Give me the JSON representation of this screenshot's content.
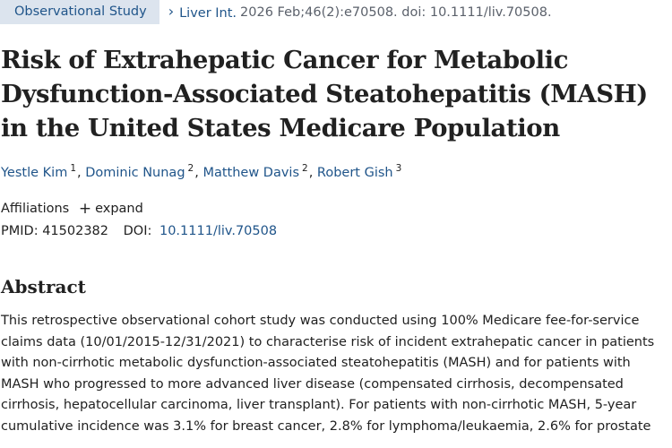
{
  "badge": "Observational Study",
  "journal": {
    "name": "Liver Int.",
    "citation": "2026 Feb;46(2):e70508. doi: 10.1111/liv.70508."
  },
  "title": "Risk of Extrahepatic Cancer for Metabolic Dysfunction-Associated Steatohepatitis (MASH) in the United States Medicare Population",
  "authors": [
    {
      "name": "Yestle Kim",
      "aff": "1"
    },
    {
      "name": "Dominic Nunag",
      "aff": "2"
    },
    {
      "name": "Matthew Davis",
      "aff": "2"
    },
    {
      "name": "Robert Gish",
      "aff": "3"
    }
  ],
  "affiliations": {
    "label": "Affiliations",
    "expand_label": "expand"
  },
  "ids": {
    "pmid_label": "PMID:",
    "pmid": "41502382",
    "doi_label": "DOI:",
    "doi": "10.1111/liv.70508"
  },
  "abstract": {
    "heading": "Abstract",
    "lines": [
      "This retrospective observational cohort study was conducted using 100% Medicare fee-for-service",
      "claims data (10/01/2015-12/31/2021) to characterise risk of incident extrahepatic cancer in patients",
      "with non-cirrhotic metabolic dysfunction-associated steatohepatitis (MASH) and for patients with",
      "MASH who progressed to more advanced liver disease (compensated cirrhosis, decompensated",
      "cirrhosis, hepatocellular carcinoma, liver transplant). For patients with non-cirrhotic MASH, 5-year",
      "cumulative incidence was 3.1% for breast cancer, 2.8% for lymphoma/leukaemia, 2.6% for prostate"
    ]
  }
}
